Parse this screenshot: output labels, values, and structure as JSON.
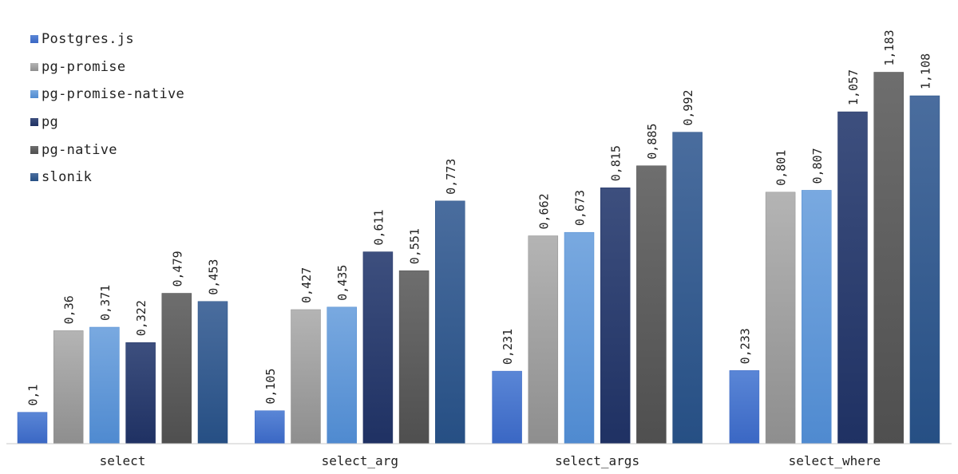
{
  "chart_data": {
    "type": "bar",
    "categories": [
      "select",
      "select_arg",
      "select_args",
      "select_where"
    ],
    "series": [
      {
        "name": "Postgres.js",
        "values": [
          0.1,
          0.105,
          0.231,
          0.233
        ],
        "labels": [
          "0,1",
          "0,105",
          "0,231",
          "0,233"
        ],
        "color_top": "#5a86d6",
        "color_bottom": "#3a67c4"
      },
      {
        "name": "pg-promise",
        "values": [
          0.36,
          0.427,
          0.662,
          0.801
        ],
        "labels": [
          "0,36",
          "0,427",
          "0,662",
          "0,801"
        ],
        "color_top": "#b4b4b4",
        "color_bottom": "#8e8e8e"
      },
      {
        "name": "pg-promise-native",
        "values": [
          0.371,
          0.435,
          0.673,
          0.807
        ],
        "labels": [
          "0,371",
          "0,435",
          "0,673",
          "0,807"
        ],
        "color_top": "#79a9e0",
        "color_bottom": "#4f8ad0"
      },
      {
        "name": "pg",
        "values": [
          0.322,
          0.611,
          0.815,
          1.057
        ],
        "labels": [
          "0,322",
          "0,611",
          "0,815",
          "1,057"
        ],
        "color_top": "#3d4f7e",
        "color_bottom": "#1f3163"
      },
      {
        "name": "pg-native",
        "values": [
          0.479,
          0.551,
          0.885,
          1.183
        ],
        "labels": [
          "0,479",
          "0,551",
          "0,885",
          "1,183"
        ],
        "color_top": "#6e6e6e",
        "color_bottom": "#4f4f4f"
      },
      {
        "name": "slonik",
        "values": [
          0.453,
          0.773,
          0.992,
          1.108
        ],
        "labels": [
          "0,453",
          "0,773",
          "0,992",
          "1,108"
        ],
        "color_top": "#4a6d9e",
        "color_bottom": "#264f84"
      }
    ],
    "title": "",
    "xlabel": "",
    "ylabel": "",
    "ylim": [
      0,
      1.2
    ],
    "grid": false,
    "legend_position": "top-left",
    "colors": {
      "axis": "#c8c8c8",
      "label_text": "#222222"
    }
  }
}
